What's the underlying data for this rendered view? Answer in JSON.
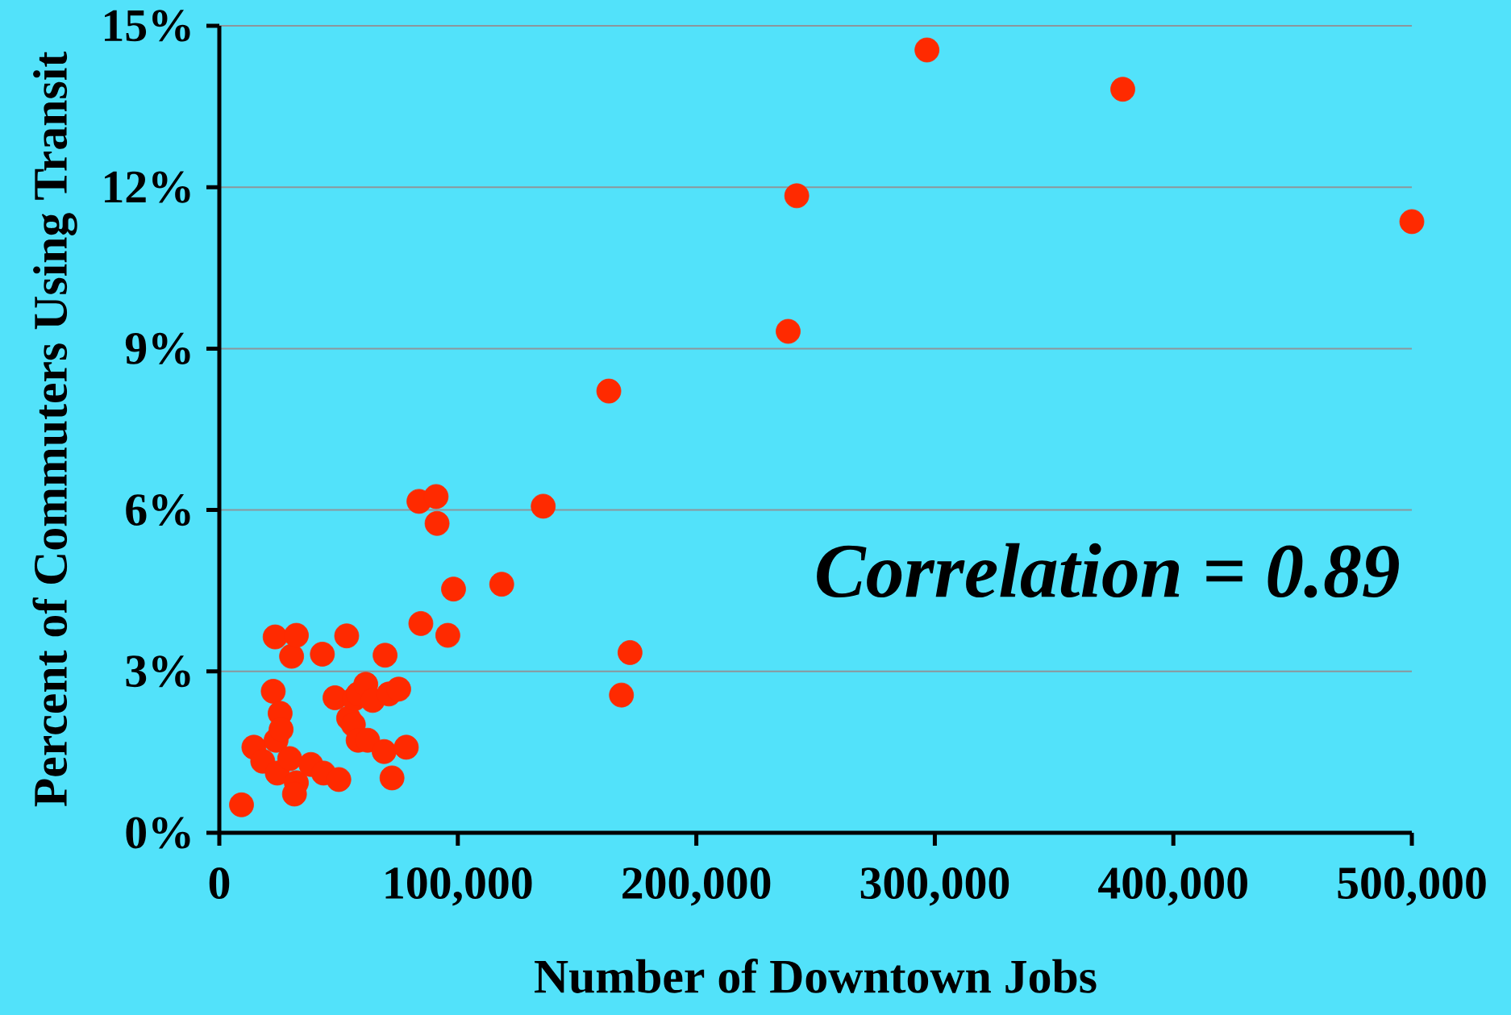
{
  "chart_data": {
    "type": "scatter",
    "xlabel": "Number of Downtown Jobs",
    "ylabel": "Percent of Commuters Using Transit",
    "annotations": [
      "*Correlation = 0.89*"
    ],
    "x": [
      9300,
      14500,
      18200,
      22600,
      23400,
      23800,
      24300,
      25500,
      25900,
      29500,
      30300,
      32300,
      32300,
      31500,
      38400,
      43200,
      43700,
      48500,
      50100,
      53400,
      54200,
      56200,
      56600,
      58200,
      58200,
      61400,
      62200,
      64300,
      69100,
      69500,
      71100,
      72400,
      75200,
      78400,
      83700,
      84500,
      90900,
      91300,
      95800,
      98200,
      118400,
      135800,
      163300,
      168600,
      172200,
      238500,
      242100,
      296700,
      378800,
      500000
    ],
    "series": [
      {
        "color": "#ff2a00",
        "values": [
          0.52,
          1.59,
          1.33,
          2.63,
          3.64,
          1.72,
          1.11,
          2.22,
          1.92,
          1.38,
          3.28,
          3.67,
          0.93,
          0.72,
          1.27,
          3.32,
          1.11,
          2.51,
          0.99,
          3.66,
          2.13,
          2.01,
          2.49,
          1.72,
          2.58,
          2.76,
          1.72,
          2.46,
          1.51,
          3.3,
          2.58,
          1.02,
          2.67,
          1.59,
          6.16,
          3.89,
          6.25,
          5.75,
          3.67,
          4.53,
          4.62,
          6.07,
          8.21,
          2.56,
          3.35,
          9.32,
          11.84,
          14.55,
          13.82,
          11.36
        ]
      }
    ],
    "marker": "circle",
    "xlim": [
      0,
      500000
    ],
    "xticks": [
      0,
      {
        "value": 100000,
        "label": "100,000"
      },
      {
        "value": 200000,
        "label": "200,000"
      },
      {
        "value": 300000,
        "label": "300,000"
      },
      {
        "value": 400000,
        "label": "400,000"
      },
      {
        "value": 500000,
        "label": "500,000"
      }
    ],
    "ylim": [
      0,
      15
    ],
    "yticks": [
      {
        "value": 0,
        "label": "0%"
      },
      {
        "value": 3,
        "label": "3%"
      },
      {
        "value": 6,
        "label": "6%"
      },
      {
        "value": 9,
        "label": "9%"
      },
      {
        "value": 12,
        "label": "12%"
      },
      {
        "value": 15,
        "label": "15%"
      }
    ],
    "grid": "y"
  }
}
